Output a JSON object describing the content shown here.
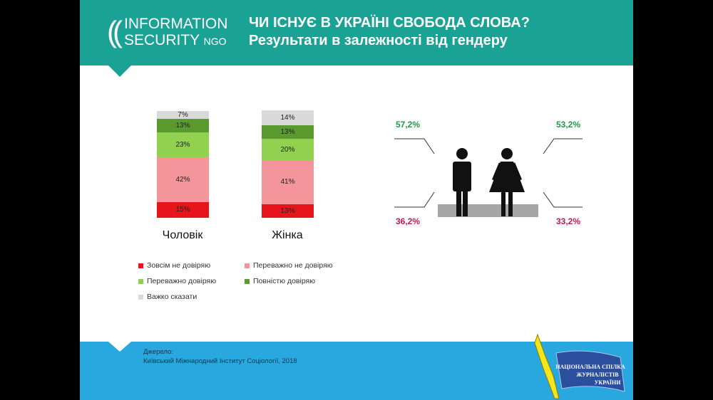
{
  "header": {
    "logo_line1": "INFORMATION",
    "logo_line2": "SECURITY",
    "logo_ngo": "NGO",
    "title": "ЧИ ІСНУЄ В УКРАЇНІ СВОБОДА СЛОВА?",
    "subtitle": "Результати в залежності від гендеру"
  },
  "chart_data": {
    "type": "bar",
    "stacked": true,
    "categories": [
      "Чоловік",
      "Жінка"
    ],
    "series": [
      {
        "name": "Зовсім не довіряю",
        "color": "#e8141c",
        "values": [
          15,
          13
        ]
      },
      {
        "name": "Переважно не довіряю",
        "color": "#f4959b",
        "values": [
          42,
          41
        ]
      },
      {
        "name": "Переважно довіряю",
        "color": "#92d050",
        "values": [
          23,
          20
        ]
      },
      {
        "name": "Повністю довіряю",
        "color": "#5a9a2e",
        "values": [
          13,
          13
        ]
      },
      {
        "name": "Важко сказати",
        "color": "#d9d9d9",
        "values": [
          7,
          14
        ]
      }
    ],
    "legend": "bottom"
  },
  "gender_figure": {
    "male_top": "57,2%",
    "female_top": "53,2%",
    "male_bottom": "36,2%",
    "female_bottom": "33,2%",
    "top_color": "#1d9b4a",
    "bottom_color": "#c2185b"
  },
  "footer": {
    "source_label": "Джерело:",
    "source_text": "Київський Міжнародний Інститут Соціології, 2018",
    "emblem_text": "Національна спілка журналістів України"
  }
}
